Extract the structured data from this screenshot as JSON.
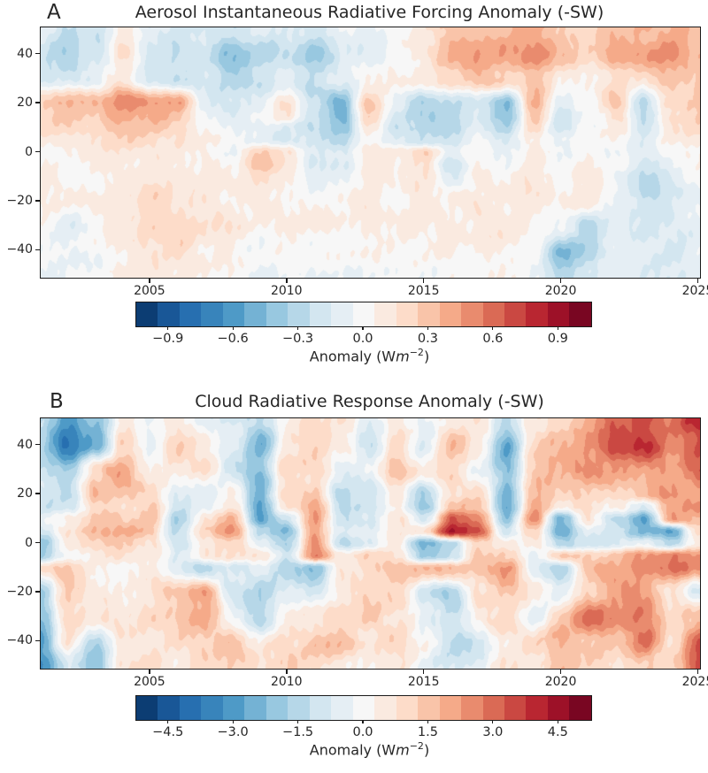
{
  "page": {
    "background": "#ffffff",
    "text_color": "#262626",
    "spine_color": "#1a1a1a"
  },
  "colormap_anchors": [
    "#053061",
    "#2166ac",
    "#4393c3",
    "#92c5de",
    "#d1e5f0",
    "#f7f7f7",
    "#fddbc7",
    "#f4a582",
    "#d6604d",
    "#b2182b",
    "#67001f"
  ],
  "chart_data": [
    {
      "type": "heatmap",
      "panel_label": "A",
      "title": "Aerosol Instantaneous Radiative Forcing Anomaly (-SW)",
      "colormap": "RdBu_r",
      "x_range": [
        2001,
        2025.05
      ],
      "y_range": [
        -51,
        51
      ],
      "x_tick_labels": [
        "2005",
        "2010",
        "2015",
        "2020",
        "2025"
      ],
      "x_tick_years": [
        2005,
        2010,
        2015,
        2020,
        2025
      ],
      "y_tick_labels": [
        "40",
        "20",
        "0",
        "−20",
        "−40"
      ],
      "y_tick_lats": [
        40,
        20,
        0,
        -20,
        -40
      ],
      "noise_amp": 0.05,
      "colorbar": {
        "vmin": -1.05,
        "vmax": 1.05,
        "n_segments": 21,
        "tick_labels": [
          "−0.9",
          "−0.6",
          "−0.3",
          "0.0",
          "0.3",
          "0.6",
          "0.9"
        ],
        "tick_values": [
          -0.9,
          -0.6,
          -0.3,
          0.0,
          0.3,
          0.6,
          0.9
        ],
        "label_parts": {
          "pre": "Anomaly (W",
          "var": "m",
          "exp": "−2",
          "post": ")"
        }
      },
      "grid": {
        "years": [
          2001,
          2002,
          2003,
          2004,
          2005,
          2006,
          2007,
          2008,
          2009,
          2010,
          2011,
          2012,
          2013,
          2014,
          2015,
          2016,
          2017,
          2018,
          2019,
          2020,
          2021,
          2022,
          2023,
          2024,
          2025
        ],
        "lats": [
          50,
          40,
          30,
          20,
          15,
          10,
          5,
          0,
          -5,
          -10,
          -20,
          -30,
          -40,
          -50
        ],
        "values": [
          [
            -0.1,
            -0.25,
            -0.2,
            0.1,
            -0.15,
            -0.2,
            -0.15,
            -0.25,
            -0.15,
            -0.1,
            -0.2,
            -0.1,
            -0.05,
            0.0,
            0.1,
            0.3,
            0.35,
            0.3,
            0.4,
            0.25,
            0.2,
            0.3,
            0.35,
            0.4,
            0.3
          ],
          [
            -0.2,
            -0.35,
            -0.25,
            0.15,
            -0.2,
            -0.3,
            -0.2,
            -0.45,
            -0.3,
            -0.25,
            -0.35,
            -0.15,
            -0.1,
            0.0,
            0.15,
            0.35,
            0.45,
            0.4,
            0.5,
            0.3,
            0.25,
            0.4,
            0.45,
            0.5,
            0.35
          ],
          [
            -0.15,
            -0.2,
            -0.1,
            0.1,
            -0.15,
            -0.25,
            -0.15,
            -0.3,
            -0.2,
            -0.15,
            -0.25,
            -0.1,
            0.0,
            0.05,
            0.1,
            0.2,
            0.3,
            0.25,
            0.3,
            0.1,
            0.05,
            0.2,
            0.15,
            0.3,
            0.25
          ],
          [
            0.3,
            0.35,
            0.3,
            0.55,
            0.45,
            0.4,
            -0.1,
            -0.15,
            -0.1,
            0.15,
            -0.2,
            -0.5,
            0.3,
            -0.1,
            -0.3,
            -0.3,
            -0.2,
            -0.45,
            0.35,
            -0.15,
            0.05,
            0.3,
            -0.3,
            0.2,
            0.3
          ],
          [
            0.25,
            0.3,
            0.25,
            0.45,
            0.4,
            0.3,
            -0.05,
            -0.1,
            -0.05,
            0.1,
            -0.25,
            -0.5,
            0.2,
            -0.15,
            -0.35,
            -0.3,
            -0.15,
            -0.4,
            0.3,
            -0.2,
            0.0,
            0.2,
            -0.3,
            0.15,
            0.25
          ],
          [
            0.2,
            0.25,
            0.2,
            0.35,
            0.3,
            0.25,
            0.0,
            -0.05,
            -0.1,
            -0.15,
            -0.3,
            -0.4,
            0.1,
            -0.2,
            -0.3,
            -0.25,
            -0.1,
            -0.3,
            0.2,
            -0.2,
            -0.05,
            0.1,
            -0.25,
            0.1,
            0.2
          ],
          [
            0.1,
            0.15,
            0.1,
            0.25,
            0.2,
            0.15,
            0.05,
            0.0,
            -0.1,
            -0.2,
            -0.2,
            -0.25,
            0.05,
            -0.15,
            -0.2,
            -0.2,
            -0.05,
            -0.15,
            0.1,
            -0.1,
            0.0,
            0.05,
            -0.15,
            0.05,
            0.1
          ],
          [
            0.05,
            0.05,
            0.1,
            0.15,
            0.15,
            0.1,
            0.05,
            0.0,
            0.25,
            0.1,
            -0.15,
            -0.15,
            0.05,
            0.1,
            0.25,
            -0.1,
            0.0,
            -0.05,
            0.1,
            -0.05,
            0.05,
            0.0,
            -0.15,
            0.0,
            0.05
          ],
          [
            0.05,
            0.0,
            0.1,
            0.1,
            0.1,
            0.1,
            0.05,
            0.05,
            0.3,
            0.15,
            -0.2,
            -0.15,
            0.05,
            0.1,
            0.15,
            -0.2,
            0.05,
            0.0,
            0.1,
            0.0,
            0.05,
            0.0,
            -0.25,
            -0.1,
            0.0
          ],
          [
            0.05,
            0.0,
            0.05,
            0.1,
            0.1,
            0.15,
            0.1,
            0.05,
            0.15,
            0.1,
            -0.15,
            -0.1,
            0.1,
            0.05,
            0.1,
            -0.1,
            0.1,
            0.05,
            0.15,
            0.05,
            0.1,
            -0.05,
            -0.3,
            -0.15,
            -0.05
          ],
          [
            0.05,
            0.1,
            0.1,
            0.15,
            0.2,
            0.15,
            0.1,
            0.05,
            0.05,
            0.05,
            0.0,
            0.05,
            0.1,
            0.05,
            0.1,
            0.1,
            0.15,
            0.1,
            0.1,
            0.05,
            0.1,
            -0.1,
            -0.25,
            -0.2,
            -0.1
          ],
          [
            0.0,
            -0.15,
            0.05,
            0.1,
            0.2,
            0.25,
            0.15,
            0.1,
            0.05,
            0.1,
            0.05,
            0.05,
            0.1,
            0.05,
            0.05,
            0.1,
            0.1,
            0.1,
            0.05,
            0.0,
            -0.35,
            -0.1,
            -0.15,
            -0.15,
            -0.1
          ],
          [
            -0.05,
            -0.1,
            0.0,
            0.05,
            0.15,
            0.2,
            0.1,
            0.05,
            0.0,
            0.05,
            0.0,
            0.0,
            0.05,
            0.0,
            0.0,
            0.05,
            0.05,
            0.05,
            0.0,
            -0.45,
            -0.3,
            -0.05,
            -0.1,
            -0.15,
            -0.1
          ],
          [
            -0.1,
            -0.05,
            0.0,
            0.05,
            0.1,
            0.1,
            0.05,
            0.0,
            -0.05,
            0.0,
            -0.05,
            -0.05,
            0.0,
            -0.05,
            -0.05,
            0.0,
            0.0,
            0.0,
            -0.05,
            -0.3,
            -0.2,
            -0.1,
            -0.1,
            -0.15,
            -0.1
          ]
        ]
      }
    },
    {
      "type": "heatmap",
      "panel_label": "B",
      "title": "Cloud Radiative Response Anomaly (-SW)",
      "colormap": "RdBu_r",
      "x_range": [
        2001,
        2025.05
      ],
      "y_range": [
        -51,
        51
      ],
      "x_tick_labels": [
        "2005",
        "2010",
        "2015",
        "2020",
        "2025"
      ],
      "x_tick_years": [
        2005,
        2010,
        2015,
        2020,
        2025
      ],
      "y_tick_labels": [
        "40",
        "20",
        "0",
        "−20",
        "−40"
      ],
      "y_tick_lats": [
        40,
        20,
        0,
        -20,
        -40
      ],
      "noise_amp": 0.3,
      "colorbar": {
        "vmin": -5.25,
        "vmax": 5.25,
        "n_segments": 21,
        "tick_labels": [
          "−4.5",
          "−3.0",
          "−1.5",
          "0.0",
          "1.5",
          "3.0",
          "4.5"
        ],
        "tick_values": [
          -4.5,
          -3.0,
          -1.5,
          0.0,
          1.5,
          3.0,
          4.5
        ],
        "label_parts": {
          "pre": "Anomaly (W",
          "var": "m",
          "exp": "−2",
          "post": ")"
        }
      },
      "grid": {
        "years": [
          2001,
          2002,
          2003,
          2004,
          2005,
          2006,
          2007,
          2008,
          2009,
          2010,
          2011,
          2012,
          2013,
          2014,
          2015,
          2016,
          2017,
          2018,
          2019,
          2020,
          2021,
          2022,
          2023,
          2024,
          2025
        ],
        "lats": [
          50,
          40,
          30,
          20,
          15,
          10,
          5,
          0,
          -5,
          -10,
          -20,
          -30,
          -40,
          -50
        ],
        "values": [
          [
            -1.5,
            -3.0,
            -2.0,
            0.5,
            -0.5,
            0.5,
            -0.5,
            -1.0,
            -1.5,
            0.5,
            1.0,
            0.5,
            -0.5,
            0.5,
            -0.5,
            0.5,
            1.0,
            -1.5,
            0.5,
            1.0,
            2.0,
            3.0,
            3.5,
            3.0,
            4.0
          ],
          [
            -1.5,
            -4.0,
            -3.0,
            1.0,
            -0.5,
            1.0,
            0.5,
            -0.5,
            -2.5,
            0.5,
            1.5,
            0.5,
            -1.0,
            1.0,
            -0.5,
            1.5,
            0.5,
            -3.0,
            1.0,
            1.5,
            2.5,
            3.5,
            4.0,
            2.5,
            3.5
          ],
          [
            -1.0,
            -2.0,
            1.0,
            2.0,
            0.5,
            0.5,
            1.0,
            -1.0,
            -2.0,
            1.0,
            1.0,
            -0.5,
            -0.5,
            1.5,
            0.5,
            1.0,
            -0.5,
            -2.0,
            1.5,
            2.0,
            2.5,
            2.5,
            2.0,
            2.0,
            3.0
          ],
          [
            -0.5,
            -1.5,
            1.5,
            1.5,
            1.0,
            -1.0,
            -0.5,
            0.5,
            -2.5,
            1.0,
            1.5,
            -1.5,
            -1.0,
            0.5,
            -1.5,
            0.5,
            1.0,
            -2.5,
            1.5,
            1.0,
            1.5,
            1.0,
            1.5,
            2.5,
            2.0
          ],
          [
            -1.0,
            -1.0,
            1.0,
            1.0,
            1.5,
            -1.0,
            -0.5,
            1.0,
            -3.0,
            0.5,
            2.0,
            -1.5,
            -1.5,
            0.5,
            -2.0,
            1.5,
            1.5,
            -2.5,
            2.0,
            0.5,
            1.0,
            0.5,
            -1.0,
            2.0,
            2.5
          ],
          [
            -0.5,
            0.5,
            1.5,
            1.5,
            1.5,
            -1.5,
            0.5,
            2.0,
            -3.0,
            -1.0,
            2.0,
            -1.0,
            -1.0,
            1.0,
            -1.0,
            3.5,
            2.5,
            -2.0,
            2.5,
            -2.5,
            0.5,
            -1.5,
            -3.0,
            2.0,
            1.5
          ],
          [
            -1.0,
            1.0,
            1.5,
            2.0,
            1.5,
            -1.5,
            1.0,
            2.5,
            -1.5,
            -2.5,
            2.0,
            -0.5,
            -0.5,
            0.5,
            1.0,
            4.5,
            3.0,
            -1.0,
            1.5,
            -3.0,
            -0.5,
            -1.0,
            -2.5,
            -3.0,
            1.0
          ],
          [
            -2.0,
            0.5,
            1.0,
            1.5,
            1.0,
            -1.0,
            0.5,
            1.5,
            -0.5,
            -2.0,
            2.5,
            -1.5,
            -1.0,
            0.5,
            -2.5,
            -1.5,
            1.0,
            0.5,
            0.5,
            -1.5,
            -1.0,
            -0.5,
            -0.5,
            -1.5,
            0.5
          ],
          [
            -2.0,
            0.0,
            0.5,
            1.0,
            0.5,
            -0.5,
            0.5,
            1.0,
            0.5,
            -1.0,
            2.5,
            0.5,
            1.0,
            1.0,
            -2.0,
            -1.0,
            1.5,
            1.5,
            -0.5,
            1.5,
            1.0,
            1.5,
            2.0,
            2.5,
            2.0
          ],
          [
            0.5,
            1.5,
            0.5,
            0.0,
            0.5,
            -0.5,
            -1.5,
            -1.0,
            -0.5,
            -1.5,
            -2.5,
            0.5,
            1.0,
            1.5,
            1.5,
            2.0,
            1.5,
            2.5,
            -0.5,
            -1.5,
            1.5,
            2.0,
            2.5,
            3.0,
            2.0
          ],
          [
            -2.0,
            1.5,
            0.5,
            0.5,
            0.5,
            1.5,
            2.0,
            -1.0,
            -2.0,
            -0.5,
            -1.0,
            0.5,
            1.0,
            1.5,
            -1.0,
            -1.5,
            1.0,
            1.5,
            0.5,
            -0.5,
            1.0,
            2.0,
            2.0,
            0.5,
            -1.0
          ],
          [
            -2.5,
            1.0,
            1.0,
            0.5,
            1.0,
            1.5,
            2.0,
            -0.5,
            -1.5,
            0.5,
            0.5,
            1.0,
            1.5,
            0.5,
            -0.5,
            -1.0,
            0.5,
            1.0,
            -0.5,
            1.5,
            3.0,
            2.5,
            3.0,
            1.0,
            1.5
          ],
          [
            -3.0,
            0.5,
            -1.5,
            0.5,
            0.5,
            1.0,
            1.5,
            1.5,
            0.5,
            1.0,
            1.5,
            1.5,
            0.5,
            1.0,
            0.0,
            -1.5,
            -1.0,
            0.5,
            1.0,
            2.0,
            1.5,
            1.5,
            3.0,
            1.0,
            3.0
          ],
          [
            -3.5,
            -1.0,
            -2.0,
            0.5,
            1.0,
            0.5,
            1.0,
            1.0,
            1.0,
            1.5,
            1.0,
            0.5,
            0.5,
            0.5,
            -0.5,
            -1.0,
            -0.5,
            0.5,
            0.5,
            1.5,
            1.0,
            0.5,
            1.5,
            1.0,
            3.5
          ]
        ]
      }
    }
  ],
  "layout_note": "two stacked latitude-time anomaly heatmaps with discrete RdBu_r colorbars"
}
